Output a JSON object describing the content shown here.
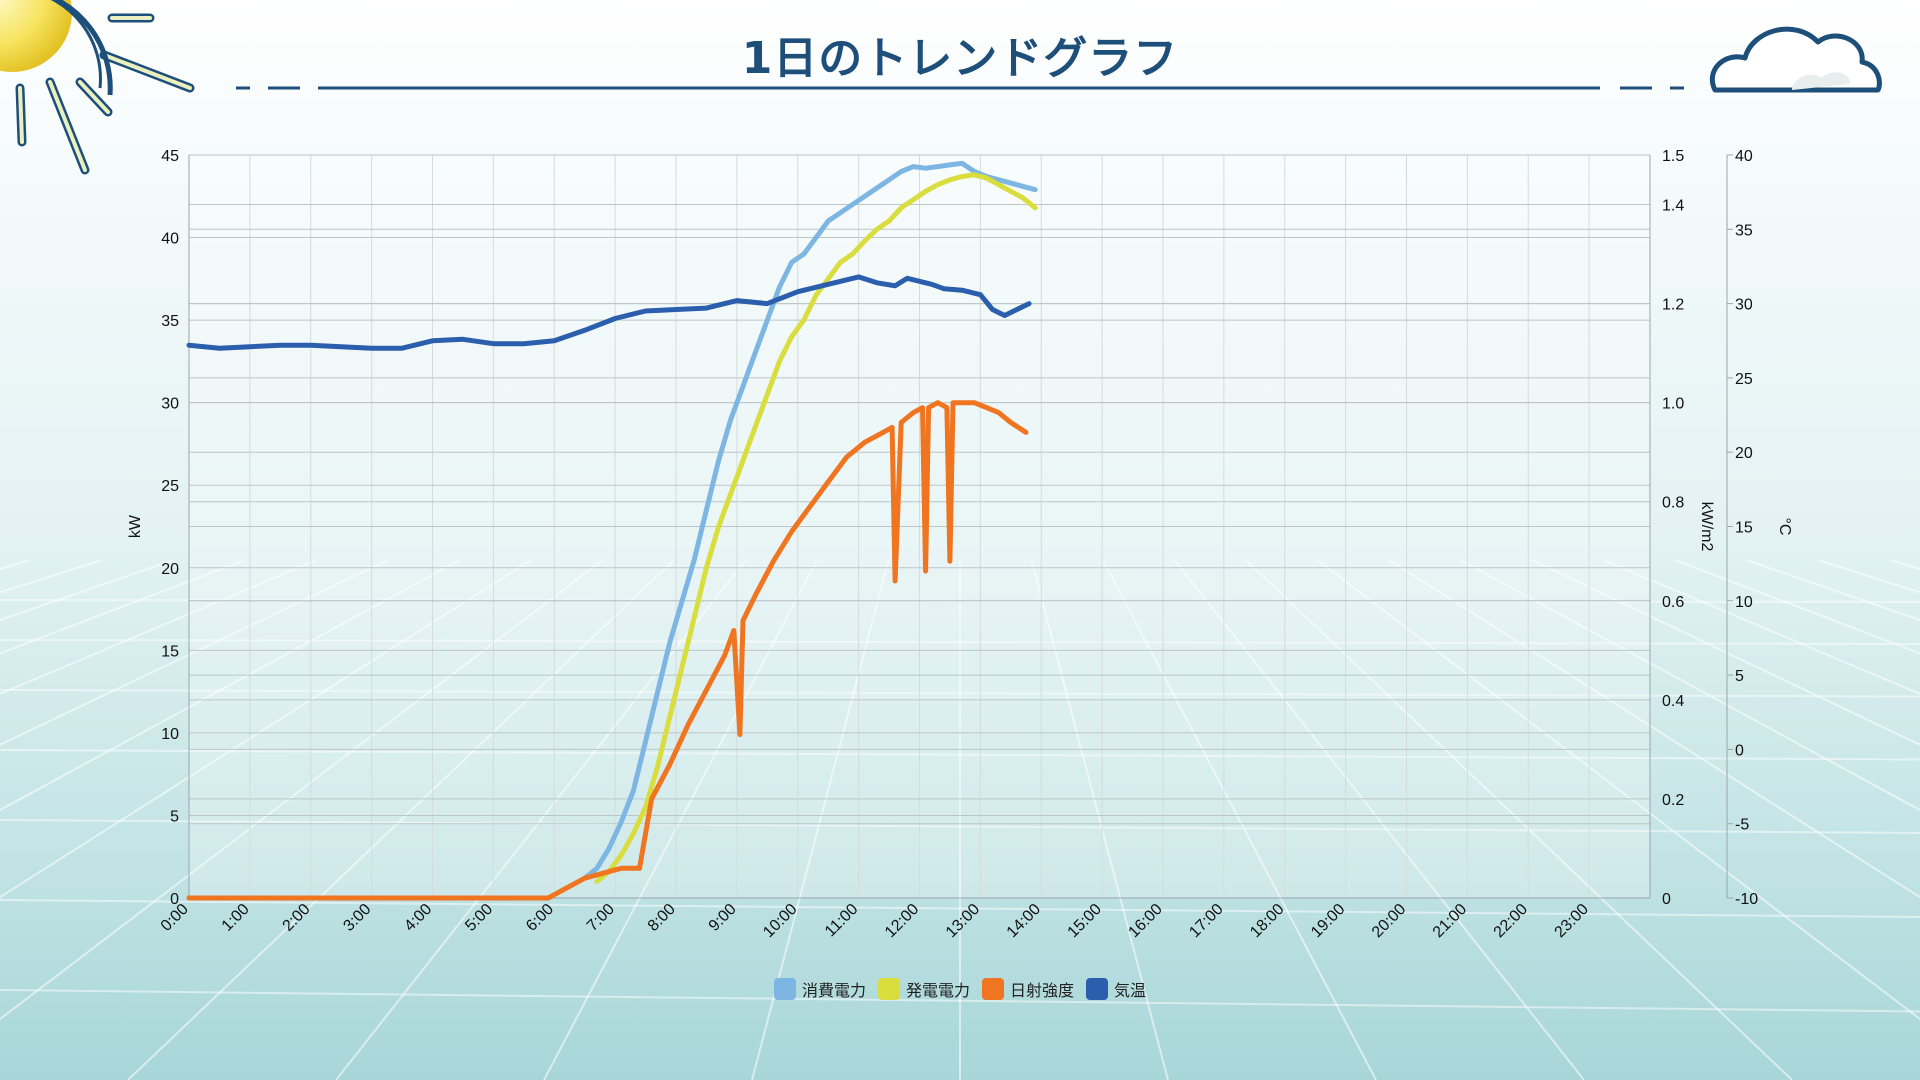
{
  "title": "1日のトレンドグラフ",
  "colors": {
    "consumption": "#7eb6e3",
    "generation": "#d9dd3e",
    "irradiance": "#ef7521",
    "temperature": "#2b5fad",
    "title": "#1d4f7a"
  },
  "chart_data": {
    "type": "line",
    "grid": true,
    "legend_position": "bottom-center",
    "x_ticks": [
      "0:00",
      "1:00",
      "2:00",
      "3:00",
      "4:00",
      "5:00",
      "6:00",
      "7:00",
      "8:00",
      "9:00",
      "10:00",
      "11:00",
      "12:00",
      "13:00",
      "14:00",
      "15:00",
      "16:00",
      "17:00",
      "18:00",
      "19:00",
      "20:00",
      "21:00",
      "22:00",
      "23:00"
    ],
    "xlim": [
      0,
      24
    ],
    "y_axes": {
      "left": {
        "label": "kW",
        "range": [
          0,
          45
        ],
        "ticks": [
          "0",
          "5",
          "10",
          "15",
          "20",
          "25",
          "30",
          "35",
          "40",
          "45"
        ]
      },
      "right1": {
        "label": "kW/m2",
        "range": [
          0,
          1.5
        ],
        "ticks": [
          "0",
          "0.2",
          "0.4",
          "0.6",
          "0.8",
          "1.0",
          "1.2",
          "1.4",
          "1.5"
        ]
      },
      "right2": {
        "label": "°C",
        "range": [
          -10,
          40
        ],
        "ticks": [
          "-10",
          "-5",
          "0",
          "5",
          "10",
          "15",
          "20",
          "25",
          "30",
          "35",
          "40"
        ]
      }
    },
    "series": [
      {
        "name": "消費電力",
        "axis": "left",
        "x": [
          6.5,
          6.7,
          6.9,
          7.1,
          7.3,
          7.5,
          7.7,
          7.9,
          8.1,
          8.3,
          8.5,
          8.7,
          8.9,
          9.1,
          9.3,
          9.5,
          9.7,
          9.9,
          10.1,
          10.3,
          10.5,
          10.7,
          10.9,
          11.1,
          11.3,
          11.5,
          11.7,
          11.9,
          12.1,
          12.3,
          12.5,
          12.7,
          12.9,
          13.1,
          13.3,
          13.5,
          13.7,
          13.9
        ],
        "y": [
          1.2,
          1.8,
          3.0,
          4.6,
          6.5,
          9.5,
          12.5,
          15.5,
          18.0,
          20.5,
          23.5,
          26.5,
          29.0,
          31.0,
          33.0,
          35.0,
          37.0,
          38.5,
          39.0,
          40.0,
          41.0,
          41.5,
          42.0,
          42.5,
          43.0,
          43.5,
          44.0,
          44.3,
          44.2,
          44.3,
          44.4,
          44.5,
          44.0,
          43.7,
          43.5,
          43.3,
          43.1,
          42.9
        ]
      },
      {
        "name": "発電電力",
        "axis": "left",
        "x": [
          6.7,
          6.9,
          7.1,
          7.3,
          7.5,
          7.7,
          7.9,
          8.1,
          8.3,
          8.5,
          8.7,
          8.9,
          9.1,
          9.3,
          9.5,
          9.7,
          9.9,
          10.1,
          10.3,
          10.5,
          10.7,
          10.9,
          11.1,
          11.3,
          11.5,
          11.7,
          11.9,
          12.1,
          12.3,
          12.5,
          12.7,
          12.9,
          13.1,
          13.3,
          13.5,
          13.7,
          13.9
        ],
        "y": [
          1.0,
          1.6,
          2.6,
          3.9,
          5.5,
          8.0,
          11.0,
          14.0,
          17.0,
          20.0,
          22.5,
          24.5,
          26.5,
          28.5,
          30.5,
          32.5,
          34.0,
          35.0,
          36.5,
          37.5,
          38.5,
          39.0,
          39.8,
          40.5,
          41.0,
          41.8,
          42.3,
          42.8,
          43.2,
          43.5,
          43.7,
          43.8,
          43.6,
          43.2,
          42.8,
          42.4,
          41.8
        ]
      },
      {
        "name": "日射強度",
        "axis": "right1",
        "x": [
          0,
          5.9,
          6.2,
          6.5,
          6.8,
          7.1,
          7.4,
          7.6,
          7.9,
          8.2,
          8.5,
          8.8,
          8.95,
          9.05,
          9.1,
          9.3,
          9.6,
          9.9,
          10.2,
          10.5,
          10.8,
          11.1,
          11.4,
          11.55,
          11.6,
          11.7,
          11.8,
          11.9,
          12.05,
          12.1,
          12.15,
          12.3,
          12.45,
          12.5,
          12.55,
          12.7,
          12.9,
          13.1,
          13.3,
          13.5,
          13.75
        ],
        "y": [
          0,
          0,
          0.02,
          0.04,
          0.05,
          0.06,
          0.06,
          0.2,
          0.27,
          0.35,
          0.42,
          0.49,
          0.54,
          0.33,
          0.56,
          0.61,
          0.68,
          0.74,
          0.79,
          0.84,
          0.89,
          0.92,
          0.94,
          0.95,
          0.64,
          0.96,
          0.97,
          0.98,
          0.99,
          0.66,
          0.99,
          1.0,
          0.99,
          0.68,
          1.0,
          1.0,
          1.0,
          0.99,
          0.98,
          0.96,
          0.94
        ]
      },
      {
        "name": "気温",
        "axis": "right2",
        "x": [
          0,
          0.5,
          1,
          1.5,
          2,
          2.5,
          3,
          3.5,
          4,
          4.5,
          5,
          5.5,
          6,
          6.5,
          7,
          7.5,
          8,
          8.5,
          9,
          9.5,
          10,
          10.5,
          11,
          11.3,
          11.6,
          11.8,
          12,
          12.2,
          12.4,
          12.7,
          13,
          13.2,
          13.4,
          13.6,
          13.8
        ],
        "y": [
          27.2,
          27.0,
          27.1,
          27.2,
          27.2,
          27.1,
          27.0,
          27.0,
          27.5,
          27.6,
          27.3,
          27.3,
          27.5,
          28.2,
          29.0,
          29.5,
          29.6,
          29.7,
          30.2,
          30.0,
          30.8,
          31.3,
          31.8,
          31.4,
          31.2,
          31.7,
          31.5,
          31.3,
          31.0,
          30.9,
          30.6,
          29.6,
          29.2,
          29.6,
          30.0
        ]
      }
    ]
  }
}
